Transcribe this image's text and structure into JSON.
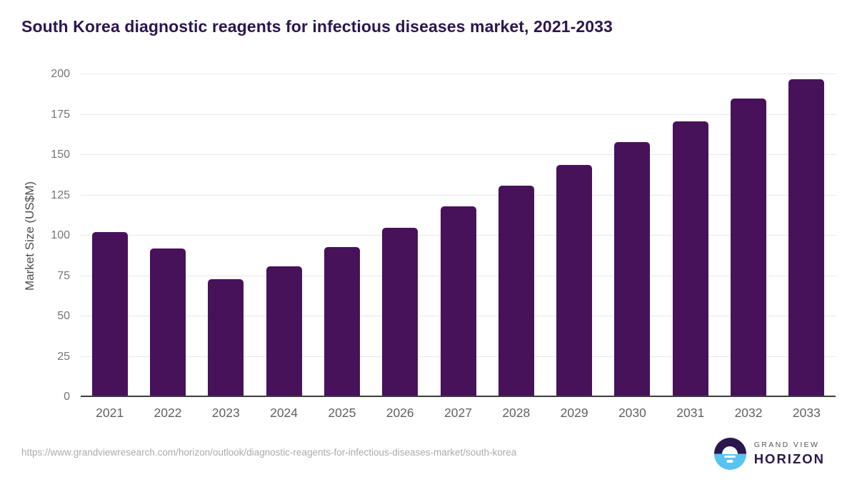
{
  "header": {
    "title": "South Korea diagnostic reagents for infectious diseases market, 2021-2033"
  },
  "chart_data": {
    "type": "bar",
    "title": "South Korea diagnostic reagents for infectious diseases market, 2021-2033",
    "categories": [
      "2021",
      "2022",
      "2023",
      "2024",
      "2025",
      "2026",
      "2027",
      "2028",
      "2029",
      "2030",
      "2031",
      "2032",
      "2033"
    ],
    "values": [
      102,
      92,
      73,
      81,
      93,
      105,
      118,
      131,
      144,
      158,
      171,
      185,
      197
    ],
    "xlabel": "",
    "ylabel": "Market Size (US$M)",
    "ylim": [
      0,
      200
    ],
    "yticks": [
      0,
      25,
      50,
      75,
      100,
      125,
      150,
      175,
      200
    ],
    "grid": true,
    "legend": "none",
    "bar_color": "#47125a"
  },
  "colors": {
    "bar": "#47125a",
    "title": "#2c164e",
    "gridline": "#e8e8e8",
    "axis_line": "#3d3d3d",
    "tick_text": "#757575",
    "logo_blue": "#58c3f0",
    "logo_purple": "#2c164e"
  },
  "footer": {
    "source_url": "https://www.grandviewresearch.com/horizon/outlook/diagnostic-reagents-for-infectious-diseases-market/south-korea",
    "logo": {
      "line1": "GRAND VIEW",
      "line2": "HORIZON"
    }
  }
}
